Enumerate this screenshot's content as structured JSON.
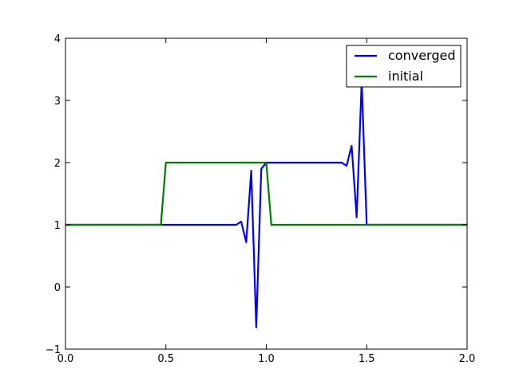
{
  "chart_data": {
    "type": "line",
    "series": [
      {
        "name": "converged",
        "color": "#0000ff",
        "x": [
          0,
          0.475,
          0.85,
          0.875,
          0.9,
          0.925,
          0.95,
          0.975,
          1.0,
          1.375,
          1.4,
          1.425,
          1.45,
          1.475,
          1.5,
          2.0
        ],
        "values": [
          1,
          1,
          1,
          1.05,
          0.72,
          1.87,
          -0.65,
          1.9,
          2,
          2,
          1.95,
          2.27,
          1.12,
          3.3,
          1,
          1
        ]
      },
      {
        "name": "initial",
        "color": "#008000",
        "x": [
          0,
          0.475,
          0.5,
          1.0,
          1.025,
          2.0
        ],
        "values": [
          1,
          1,
          2,
          2,
          1,
          1
        ]
      }
    ],
    "xlim": [
      0,
      2
    ],
    "ylim": [
      -1,
      4
    ],
    "xticks": [
      {
        "value": 0,
        "label": "0.0"
      },
      0.5,
      {
        "value": 1,
        "label": "1.0"
      },
      1.5,
      {
        "value": 2,
        "label": "2.0"
      }
    ],
    "yticks": [
      {
        "value": -1,
        "label": "−1"
      },
      0,
      1,
      2,
      3,
      4
    ],
    "legend": "upper right",
    "grid": false
  }
}
